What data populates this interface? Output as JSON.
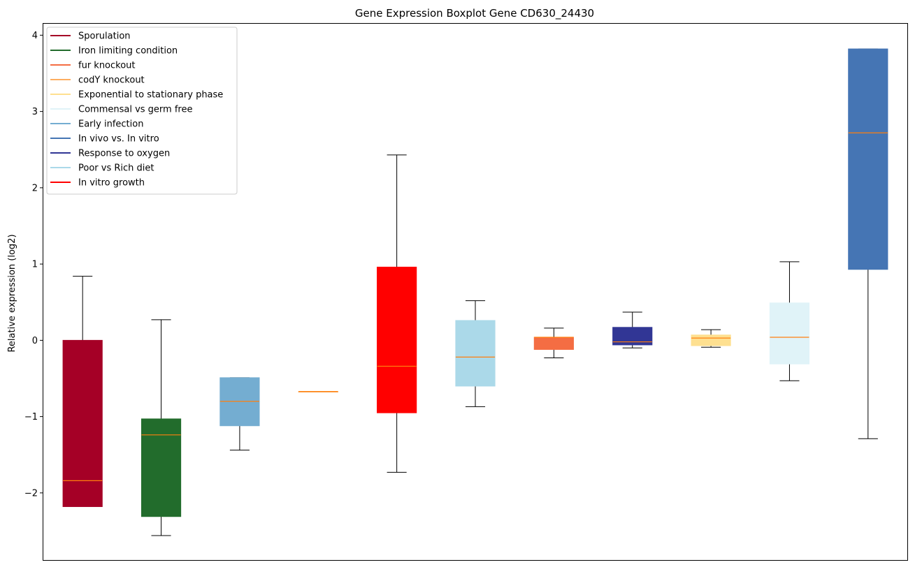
{
  "chart_data": {
    "type": "boxplot",
    "title": "Gene Expression Boxplot Gene CD630_24430",
    "ylabel": "Relative expression (log2)",
    "xlabel": "",
    "ylim": [
      -2.88,
      4.15
    ],
    "yticks": [
      -2,
      -1,
      0,
      1,
      2,
      3,
      4
    ],
    "ytick_labels": [
      "−2",
      "−1",
      "0",
      "1",
      "2",
      "3",
      "4"
    ],
    "grid": false,
    "legend_position": "top-left",
    "median_color": "#ff7f0e",
    "whisker_color": "#000000",
    "legend": [
      {
        "label": "Sporulation",
        "color": "#a50026"
      },
      {
        "label": "Iron limiting condition",
        "color": "#226c2c"
      },
      {
        "label": "fur knockout",
        "color": "#f46d43"
      },
      {
        "label": "codY knockout",
        "color": "#fdae61"
      },
      {
        "label": "Exponential to stationary phase",
        "color": "#fee090"
      },
      {
        "label": "Commensal vs germ free",
        "color": "#e0f3f8"
      },
      {
        "label": "Early infection",
        "color": "#74add1"
      },
      {
        "label": "In vivo vs. In vitro",
        "color": "#4575b4"
      },
      {
        "label": "Response to oxygen",
        "color": "#313695"
      },
      {
        "label": "Poor vs Rich diet",
        "color": "#abd9e9"
      },
      {
        "label": "In vitro growth",
        "color": "#ff0000"
      }
    ],
    "boxes": [
      {
        "series": "Sporulation",
        "color": "#a50026",
        "whisker_low": -2.18,
        "q1": -2.18,
        "median": -1.84,
        "q3": 0.0,
        "whisker_high": 0.84
      },
      {
        "series": "Iron limiting condition",
        "color": "#226c2c",
        "whisker_low": -2.56,
        "q1": -2.31,
        "median": -1.24,
        "q3": -1.03,
        "whisker_high": 0.27
      },
      {
        "series": "Early infection",
        "color": "#74add1",
        "whisker_low": -1.44,
        "q1": -1.12,
        "median": -0.8,
        "q3": -0.49,
        "whisker_high": -0.49
      },
      {
        "series": "codY knockout",
        "color": "#fdae61",
        "whisker_low": -0.67,
        "q1": -0.67,
        "median": -0.67,
        "q3": -0.67,
        "whisker_high": -0.67
      },
      {
        "series": "In vitro growth",
        "color": "#ff0000",
        "whisker_low": -1.73,
        "q1": -0.95,
        "median": -0.34,
        "q3": 0.96,
        "whisker_high": 2.43
      },
      {
        "series": "Poor vs Rich diet",
        "color": "#abd9e9",
        "whisker_low": -0.87,
        "q1": -0.6,
        "median": -0.22,
        "q3": 0.26,
        "whisker_high": 0.52
      },
      {
        "series": "fur knockout",
        "color": "#f46d43",
        "whisker_low": -0.23,
        "q1": -0.12,
        "median": 0.04,
        "q3": 0.04,
        "whisker_high": 0.16
      },
      {
        "series": "Response to oxygen",
        "color": "#313695",
        "whisker_low": -0.1,
        "q1": -0.06,
        "median": -0.02,
        "q3": 0.17,
        "whisker_high": 0.37
      },
      {
        "series": "Exponential to stationary phase",
        "color": "#fee090",
        "whisker_low": -0.09,
        "q1": -0.07,
        "median": 0.03,
        "q3": 0.07,
        "whisker_high": 0.14
      },
      {
        "series": "Commensal vs germ free",
        "color": "#e0f3f8",
        "whisker_low": -0.53,
        "q1": -0.31,
        "median": 0.04,
        "q3": 0.49,
        "whisker_high": 1.03
      },
      {
        "series": "In vivo vs. In vitro",
        "color": "#4575b4",
        "whisker_low": -1.29,
        "q1": 0.93,
        "median": 2.72,
        "q3": 3.82,
        "whisker_high": 3.82
      }
    ]
  }
}
